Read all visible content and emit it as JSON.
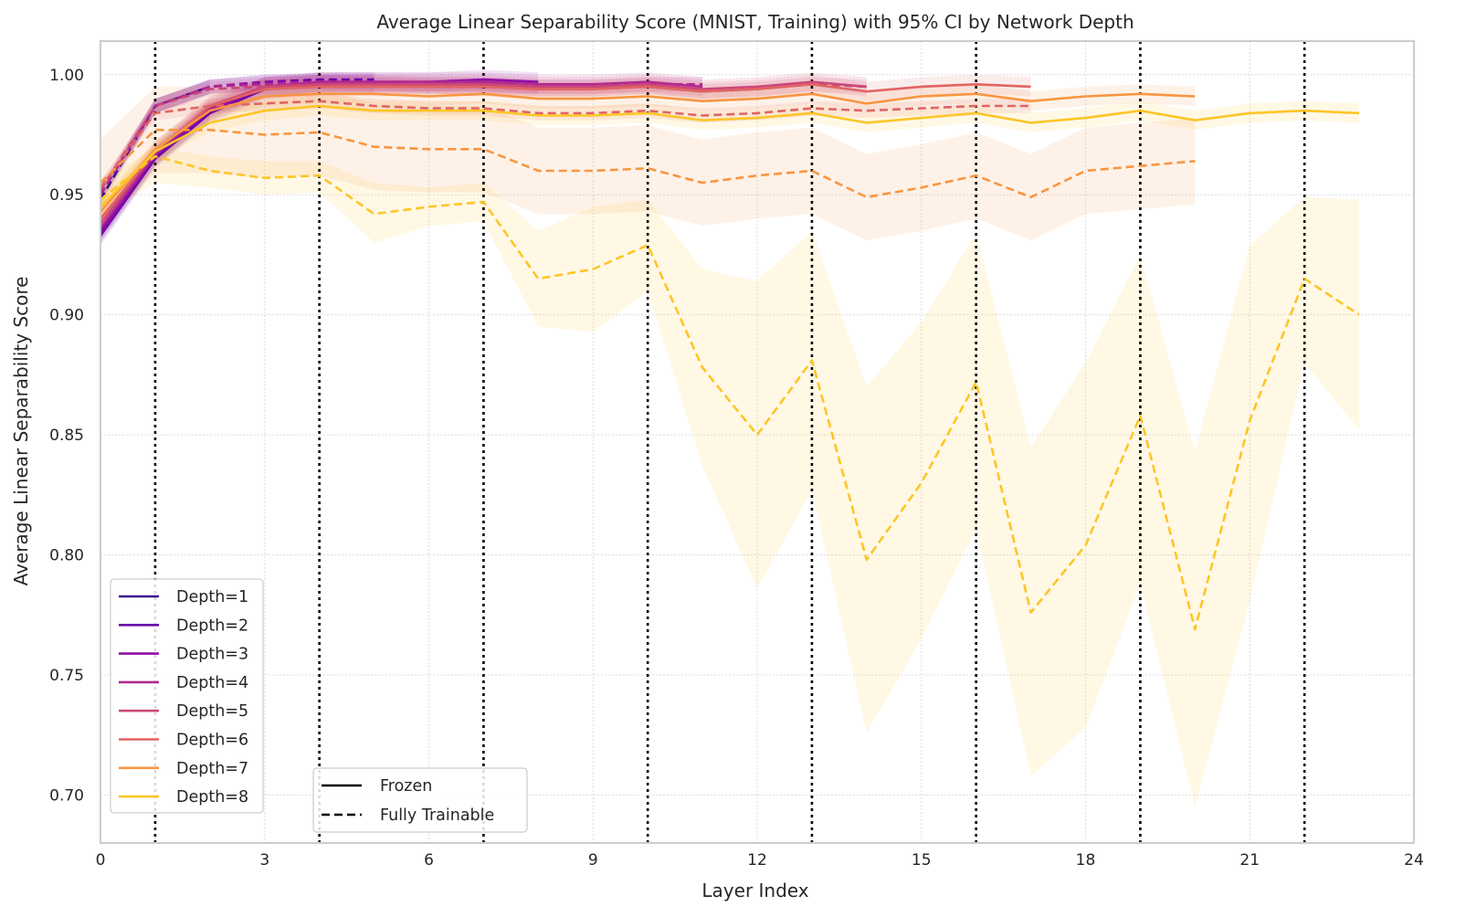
{
  "chart_data": {
    "type": "line",
    "title": "Average Linear Separability Score (MNIST, Training) with 95% CI by Network Depth",
    "xlabel": "Layer Index",
    "ylabel": "Average Linear Separability Score",
    "xlim": [
      0,
      24
    ],
    "ylim": [
      0.68,
      1.014
    ],
    "xticks": [
      0,
      3,
      6,
      9,
      12,
      15,
      18,
      21,
      24
    ],
    "yticks": [
      0.7,
      0.75,
      0.8,
      0.85,
      0.9,
      0.95,
      1.0
    ],
    "ytick_labels": [
      "0.70",
      "0.75",
      "0.80",
      "0.85",
      "0.90",
      "0.95",
      "1.00"
    ],
    "grid": true,
    "vlines": [
      1,
      4,
      7,
      10,
      13,
      16,
      19,
      22
    ],
    "legend_depth_position": "lower-left",
    "legend_style_position": "lower-center",
    "style_legend": [
      {
        "label": "Frozen",
        "dash": "solid"
      },
      {
        "label": "Fully Trainable",
        "dash": "dashed"
      }
    ],
    "series": [
      {
        "name": "Depth=1",
        "color": "#3b0f8c",
        "frozen": {
          "x": [
            0,
            1,
            2
          ],
          "y": [
            0.935,
            0.966,
            0.985
          ],
          "ci": 0.004
        },
        "trainable": {
          "x": [
            0,
            1,
            2
          ],
          "y": [
            0.948,
            0.987,
            0.995
          ],
          "ci": 0.003
        }
      },
      {
        "name": "Depth=2",
        "color": "#6a00a8",
        "frozen": {
          "x": [
            0,
            1,
            2,
            3,
            4,
            5
          ],
          "y": [
            0.933,
            0.965,
            0.984,
            0.994,
            0.996,
            0.996
          ],
          "ci": 0.004
        },
        "trainable": {
          "x": [
            0,
            1,
            2,
            3,
            4,
            5
          ],
          "y": [
            0.95,
            0.987,
            0.995,
            0.997,
            0.998,
            0.998
          ],
          "ci": 0.003
        }
      },
      {
        "name": "Depth=3",
        "color": "#8f0da4",
        "frozen": {
          "x": [
            0,
            1,
            2,
            3,
            4,
            5,
            6,
            7,
            8
          ],
          "y": [
            0.934,
            0.966,
            0.985,
            0.995,
            0.997,
            0.997,
            0.997,
            0.998,
            0.997
          ],
          "ci": 0.004
        },
        "trainable": {
          "x": [
            0,
            1,
            2,
            3,
            4,
            5,
            6,
            7,
            8
          ],
          "y": [
            0.95,
            0.987,
            0.995,
            0.997,
            0.997,
            0.997,
            0.996,
            0.996,
            0.995
          ],
          "ci": 0.003
        }
      },
      {
        "name": "Depth=4",
        "color": "#b12a90",
        "frozen": {
          "x": [
            0,
            1,
            2,
            3,
            4,
            5,
            6,
            7,
            8,
            9,
            10,
            11
          ],
          "y": [
            0.936,
            0.967,
            0.986,
            0.995,
            0.997,
            0.997,
            0.997,
            0.997,
            0.996,
            0.996,
            0.997,
            0.995
          ],
          "ci": 0.004
        },
        "trainable": {
          "x": [
            0,
            1,
            2,
            3,
            4,
            5,
            6,
            7,
            8,
            9,
            10,
            11
          ],
          "y": [
            0.95,
            0.987,
            0.995,
            0.996,
            0.997,
            0.996,
            0.995,
            0.995,
            0.995,
            0.995,
            0.996,
            0.996
          ],
          "ci": 0.003
        }
      },
      {
        "name": "Depth=5",
        "color": "#cc4778",
        "frozen": {
          "x": [
            0,
            1,
            2,
            3,
            4,
            5,
            6,
            7,
            8,
            9,
            10,
            11,
            12,
            13,
            14
          ],
          "y": [
            0.938,
            0.968,
            0.987,
            0.995,
            0.996,
            0.996,
            0.996,
            0.996,
            0.995,
            0.995,
            0.996,
            0.994,
            0.995,
            0.997,
            0.995
          ],
          "ci": 0.004
        },
        "trainable": {
          "x": [
            0,
            1,
            2,
            3,
            4,
            5,
            6,
            7,
            8,
            9,
            10,
            11,
            12,
            13,
            14
          ],
          "y": [
            0.952,
            0.987,
            0.994,
            0.995,
            0.995,
            0.995,
            0.995,
            0.995,
            0.994,
            0.994,
            0.995,
            0.993,
            0.994,
            0.996,
            0.995
          ],
          "ci": 0.003
        }
      },
      {
        "name": "Depth=6",
        "color": "#e16462",
        "frozen": {
          "x": [
            0,
            1,
            2,
            3,
            4,
            5,
            6,
            7,
            8,
            9,
            10,
            11,
            12,
            13,
            14,
            15,
            16,
            17
          ],
          "y": [
            0.94,
            0.968,
            0.987,
            0.994,
            0.995,
            0.995,
            0.995,
            0.995,
            0.994,
            0.994,
            0.995,
            0.993,
            0.994,
            0.996,
            0.993,
            0.995,
            0.996,
            0.995
          ],
          "ci": 0.004
        },
        "trainable": {
          "x": [
            0,
            1,
            2,
            3,
            4,
            5,
            6,
            7,
            8,
            9,
            10,
            11,
            12,
            13,
            14,
            15,
            16,
            17
          ],
          "y": [
            0.953,
            0.984,
            0.987,
            0.988,
            0.989,
            0.987,
            0.986,
            0.986,
            0.984,
            0.984,
            0.985,
            0.983,
            0.984,
            0.986,
            0.985,
            0.986,
            0.987,
            0.987
          ],
          "ci": 0.003
        }
      },
      {
        "name": "Depth=7",
        "color": "#f89540",
        "frozen": {
          "x": [
            0,
            1,
            2,
            3,
            4,
            5,
            6,
            7,
            8,
            9,
            10,
            11,
            12,
            13,
            14,
            15,
            16,
            17,
            18,
            19,
            20
          ],
          "y": [
            0.943,
            0.969,
            0.985,
            0.991,
            0.992,
            0.992,
            0.991,
            0.992,
            0.99,
            0.99,
            0.991,
            0.989,
            0.99,
            0.992,
            0.988,
            0.991,
            0.992,
            0.989,
            0.991,
            0.992,
            0.991
          ],
          "ci": 0.004
        },
        "trainable": {
          "x": [
            0,
            1,
            2,
            3,
            4,
            5,
            6,
            7,
            8,
            9,
            10,
            11,
            12,
            13,
            14,
            15,
            16,
            17,
            18,
            19,
            20
          ],
          "y": [
            0.955,
            0.977,
            0.977,
            0.975,
            0.976,
            0.97,
            0.969,
            0.969,
            0.96,
            0.96,
            0.961,
            0.955,
            0.958,
            0.96,
            0.949,
            0.953,
            0.958,
            0.949,
            0.96,
            0.962,
            0.964
          ],
          "ci": 0.018
        }
      },
      {
        "name": "Depth=8",
        "color": "#fdc527",
        "frozen": {
          "x": [
            0,
            1,
            2,
            3,
            4,
            5,
            6,
            7,
            8,
            9,
            10,
            11,
            12,
            13,
            14,
            15,
            16,
            17,
            18,
            19,
            20,
            21,
            22,
            23
          ],
          "y": [
            0.945,
            0.968,
            0.98,
            0.985,
            0.987,
            0.985,
            0.985,
            0.985,
            0.983,
            0.983,
            0.984,
            0.981,
            0.982,
            0.984,
            0.98,
            0.982,
            0.984,
            0.98,
            0.982,
            0.985,
            0.981,
            0.984,
            0.985,
            0.984
          ],
          "ci": 0.004
        },
        "trainable": {
          "x": [
            0,
            1,
            2,
            3,
            4,
            5,
            6,
            7,
            8,
            9,
            10,
            11,
            12,
            13,
            14,
            15,
            16,
            17,
            18,
            19,
            20,
            21,
            22,
            23
          ],
          "y": [
            0.948,
            0.966,
            0.96,
            0.957,
            0.958,
            0.942,
            0.945,
            0.947,
            0.915,
            0.919,
            0.929,
            0.878,
            0.85,
            0.881,
            0.798,
            0.83,
            0.872,
            0.776,
            0.804,
            0.858,
            0.769,
            0.856,
            0.915,
            0.9
          ],
          "ci_lower": [
            0.94,
            0.955,
            0.953,
            0.95,
            0.951,
            0.93,
            0.937,
            0.939,
            0.895,
            0.893,
            0.91,
            0.837,
            0.786,
            0.827,
            0.726,
            0.765,
            0.811,
            0.708,
            0.728,
            0.788,
            0.695,
            0.781,
            0.88,
            0.852
          ],
          "ci_upper": [
            0.955,
            0.97,
            0.966,
            0.964,
            0.964,
            0.955,
            0.953,
            0.955,
            0.935,
            0.945,
            0.948,
            0.919,
            0.914,
            0.935,
            0.87,
            0.897,
            0.934,
            0.845,
            0.88,
            0.925,
            0.843,
            0.929,
            0.949,
            0.948
          ]
        }
      }
    ]
  }
}
